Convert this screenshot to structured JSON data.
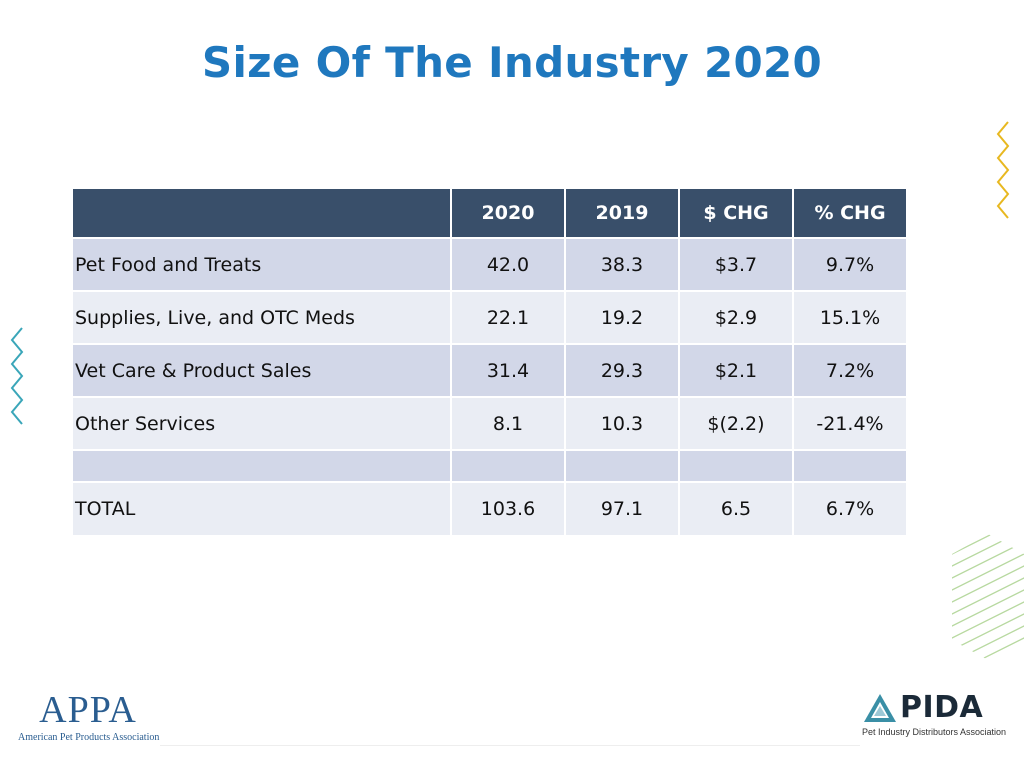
{
  "title": "Size Of The Industry 2020",
  "table": {
    "headers": [
      "",
      "2020",
      "2019",
      "$ CHG",
      "% CHG"
    ],
    "rows": [
      {
        "label": "Pet Food and Treats",
        "v2020": "42.0",
        "v2019": "38.3",
        "chg": "$3.7",
        "pct": "9.7%"
      },
      {
        "label": "Supplies, Live, and OTC Meds",
        "v2020": "22.1",
        "v2019": "19.2",
        "chg": "$2.9",
        "pct": "15.1%"
      },
      {
        "label": "Vet Care & Product Sales",
        "v2020": "31.4",
        "v2019": "29.3",
        "chg": "$2.1",
        "pct": "7.2%"
      },
      {
        "label": "Other Services",
        "v2020": "8.1",
        "v2019": "10.3",
        "chg": "$(2.2)",
        "pct": "-21.4%"
      },
      {
        "label": "",
        "v2020": "",
        "v2019": "",
        "chg": "",
        "pct": ""
      },
      {
        "label": "TOTAL",
        "v2020": "103.6",
        "v2019": "97.1",
        "chg": "6.5",
        "pct": "6.7%"
      }
    ]
  },
  "logos": {
    "appa": {
      "mark": "APPA",
      "subtitle": "American Pet Products Association"
    },
    "pida": {
      "mark": "PIDA",
      "subtitle": "Pet Industry Distributors Association"
    }
  },
  "colors": {
    "title": "#1f78be",
    "header_bg": "#394f6a",
    "row_dark": "#d2d7e8",
    "row_light": "#eaedf4",
    "zigzag_yellow": "#e8b820",
    "zigzag_teal": "#3aa6b9",
    "hatch_green": "#b8d9a0"
  }
}
